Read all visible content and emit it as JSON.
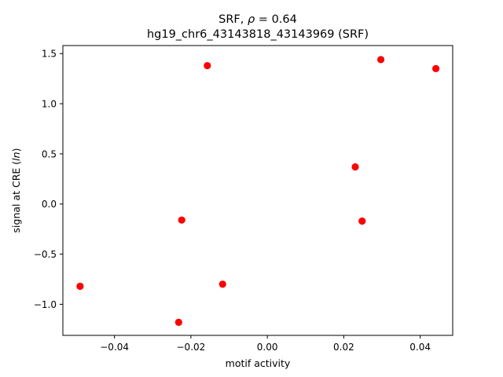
{
  "chart_data": {
    "type": "scatter",
    "title_prefix": "SRF, ",
    "title_rho": "ρ",
    "title_value": " = 0.64",
    "subtitle": "hg19_chr6_43143818_43143969 (SRF)",
    "xlabel": "motif activity",
    "ylabel_prefix": "signal at CRE (",
    "ylabel_italic": "ln",
    "ylabel_suffix": ")",
    "xlim": [
      -0.0535,
      0.0485
    ],
    "ylim": [
      -1.31,
      1.58
    ],
    "xticks": [
      {
        "value": -0.04,
        "label": "−0.04"
      },
      {
        "value": -0.02,
        "label": "−0.02"
      },
      {
        "value": 0.0,
        "label": "0.00"
      },
      {
        "value": 0.02,
        "label": "0.02"
      },
      {
        "value": 0.04,
        "label": "0.04"
      }
    ],
    "yticks": [
      {
        "value": -1.0,
        "label": "−1.0"
      },
      {
        "value": -0.5,
        "label": "−0.5"
      },
      {
        "value": 0.0,
        "label": "0.0"
      },
      {
        "value": 0.5,
        "label": "0.5"
      },
      {
        "value": 1.0,
        "label": "1.0"
      },
      {
        "value": 1.5,
        "label": "1.5"
      }
    ],
    "grid": false,
    "marker_color": "#ff0000",
    "points": [
      {
        "x": -0.049,
        "y": -0.82
      },
      {
        "x": -0.0232,
        "y": -1.18
      },
      {
        "x": -0.0224,
        "y": -0.16
      },
      {
        "x": -0.0157,
        "y": 1.38
      },
      {
        "x": -0.0117,
        "y": -0.8
      },
      {
        "x": 0.023,
        "y": 0.37
      },
      {
        "x": 0.0248,
        "y": -0.17
      },
      {
        "x": 0.0297,
        "y": 1.44
      },
      {
        "x": 0.0441,
        "y": 1.35
      }
    ]
  }
}
